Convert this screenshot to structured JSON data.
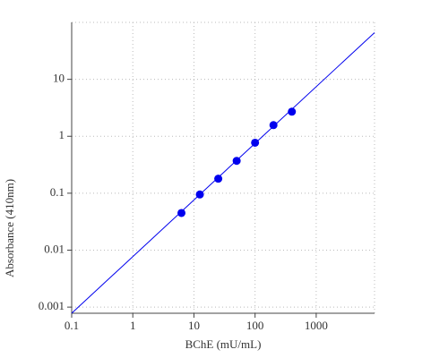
{
  "chart_data": {
    "type": "scatter",
    "x_label": "BChE (mU/mL)",
    "y_label": "Absorbance (410nm)",
    "x_log": true,
    "y_log": true,
    "grid": true,
    "xlim": [
      0.1,
      9000
    ],
    "ylim": [
      0.00078,
      100
    ],
    "xticks": [
      0.1,
      1,
      10,
      100,
      1000
    ],
    "yticks": [
      0.001,
      0.01,
      0.1,
      1,
      10
    ],
    "series": [
      {
        "color": "#0000ee",
        "x": [
          6.25,
          12.5,
          25,
          50,
          100,
          200,
          400
        ],
        "values": [
          0.045,
          0.095,
          0.18,
          0.37,
          0.77,
          1.57,
          2.7
        ]
      }
    ],
    "fit": {
      "color": "#0000ee",
      "x": [
        0.1,
        9000
      ],
      "values": [
        0.00078,
        66
      ]
    }
  }
}
